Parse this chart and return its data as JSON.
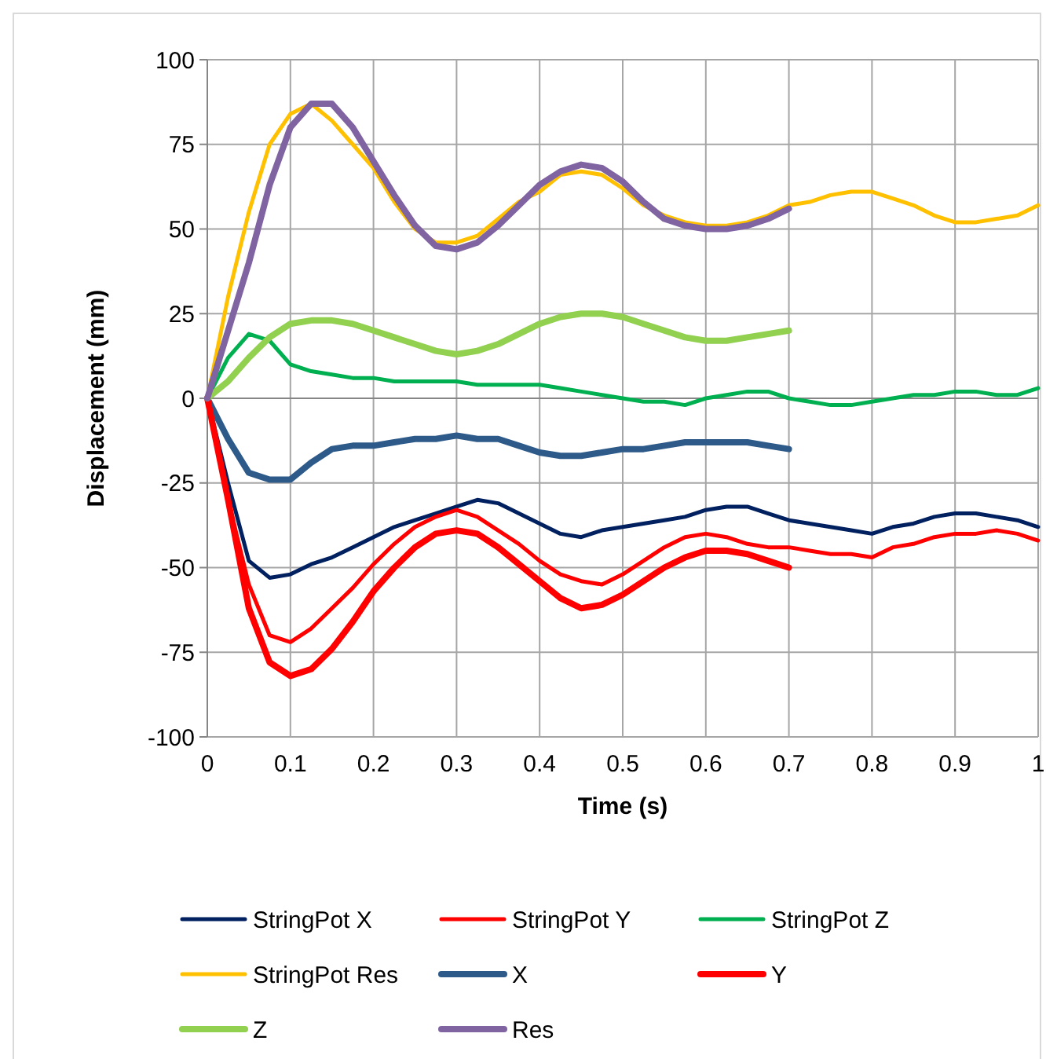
{
  "chart_data": {
    "type": "line",
    "xlabel": "Time (s)",
    "ylabel": "Displacement (mm)",
    "xlim": [
      0,
      1
    ],
    "xticks": [
      0,
      0.1,
      0.2,
      0.3,
      0.4,
      0.5,
      0.6,
      0.7,
      0.8,
      0.9,
      1
    ],
    "ylim": [
      -100,
      100
    ],
    "yticks": [
      -100,
      -75,
      -50,
      -25,
      0,
      25,
      50,
      75,
      100
    ],
    "grid": true,
    "legend": "bottom",
    "marker": "none",
    "line_style": "solid",
    "x": [
      0,
      0.025,
      0.05,
      0.075,
      0.1,
      0.125,
      0.15,
      0.175,
      0.2,
      0.225,
      0.25,
      0.275,
      0.3,
      0.325,
      0.35,
      0.375,
      0.4,
      0.425,
      0.45,
      0.475,
      0.5,
      0.525,
      0.55,
      0.575,
      0.6,
      0.625,
      0.65,
      0.675,
      0.7,
      0.725,
      0.75,
      0.775,
      0.8,
      0.825,
      0.85,
      0.875,
      0.9,
      0.925,
      0.95,
      0.975,
      1
    ],
    "series": [
      {
        "name": "StringPot X",
        "color": "#002060",
        "values": [
          0,
          -25,
          -48,
          -53,
          -52,
          -49,
          -47,
          -44,
          -41,
          -38,
          -36,
          -34,
          -32,
          -30,
          -31,
          -34,
          -37,
          -40,
          -41,
          -39,
          -38,
          -37,
          -36,
          -35,
          -33,
          -32,
          -32,
          -34,
          -36,
          -37,
          -38,
          -39,
          -40,
          -38,
          -37,
          -35,
          -34,
          -34,
          -35,
          -36,
          -38
        ]
      },
      {
        "name": "StringPot Y",
        "color": "#ff0000",
        "values": [
          0,
          -30,
          -55,
          -70,
          -72,
          -68,
          -62,
          -56,
          -49,
          -43,
          -38,
          -35,
          -33,
          -35,
          -39,
          -43,
          -48,
          -52,
          -54,
          -55,
          -52,
          -48,
          -44,
          -41,
          -40,
          -41,
          -43,
          -44,
          -44,
          -45,
          -46,
          -46,
          -47,
          -44,
          -43,
          -41,
          -40,
          -40,
          -39,
          -40,
          -42
        ]
      },
      {
        "name": "StringPot Z",
        "color": "#00b050",
        "values": [
          0,
          12,
          19,
          17,
          10,
          8,
          7,
          6,
          6,
          5,
          5,
          5,
          5,
          4,
          4,
          4,
          4,
          3,
          2,
          1,
          0,
          -1,
          -1,
          -2,
          0,
          1,
          2,
          2,
          0,
          -1,
          -2,
          -2,
          -1,
          0,
          1,
          1,
          2,
          2,
          1,
          1,
          3
        ]
      },
      {
        "name": "StringPot Res",
        "color": "#ffc000",
        "values": [
          0,
          30,
          55,
          75,
          84,
          87,
          82,
          75,
          68,
          58,
          50,
          46,
          46,
          48,
          53,
          58,
          61,
          66,
          67,
          66,
          62,
          57,
          54,
          52,
          51,
          51,
          52,
          54,
          57,
          58,
          60,
          61,
          61,
          59,
          57,
          54,
          52,
          52,
          53,
          54,
          57
        ]
      },
      {
        "name": "X",
        "color": "#2e5a8a",
        "values": [
          0,
          -12,
          -22,
          -24,
          -24,
          -19,
          -15,
          -14,
          -14,
          -13,
          -12,
          -12,
          -11,
          -12,
          -12,
          -14,
          -16,
          -17,
          -17,
          -16,
          -15,
          -15,
          -14,
          -13,
          -13,
          -13,
          -13,
          -14,
          -15,
          null,
          null,
          null,
          null,
          null,
          null,
          null,
          null,
          null,
          null,
          null,
          null
        ]
      },
      {
        "name": "Y",
        "color": "#ff0000",
        "values": [
          0,
          -30,
          -62,
          -78,
          -82,
          -80,
          -74,
          -66,
          -57,
          -50,
          -44,
          -40,
          -39,
          -40,
          -44,
          -49,
          -54,
          -59,
          -62,
          -61,
          -58,
          -54,
          -50,
          -47,
          -45,
          -45,
          -46,
          -48,
          -50,
          null,
          null,
          null,
          null,
          null,
          null,
          null,
          null,
          null,
          null,
          null,
          null
        ]
      },
      {
        "name": "Z",
        "color": "#92d050",
        "values": [
          0,
          5,
          12,
          18,
          22,
          23,
          23,
          22,
          20,
          18,
          16,
          14,
          13,
          14,
          16,
          19,
          22,
          24,
          25,
          25,
          24,
          22,
          20,
          18,
          17,
          17,
          18,
          19,
          20,
          null,
          null,
          null,
          null,
          null,
          null,
          null,
          null,
          null,
          null,
          null,
          null
        ]
      },
      {
        "name": "Res",
        "color": "#8064a2",
        "values": [
          0,
          20,
          40,
          63,
          80,
          87,
          87,
          80,
          70,
          60,
          51,
          45,
          44,
          46,
          51,
          57,
          63,
          67,
          69,
          68,
          64,
          58,
          53,
          51,
          50,
          50,
          51,
          53,
          56,
          null,
          null,
          null,
          null,
          null,
          null,
          null,
          null,
          null,
          null,
          null,
          null
        ]
      }
    ]
  }
}
